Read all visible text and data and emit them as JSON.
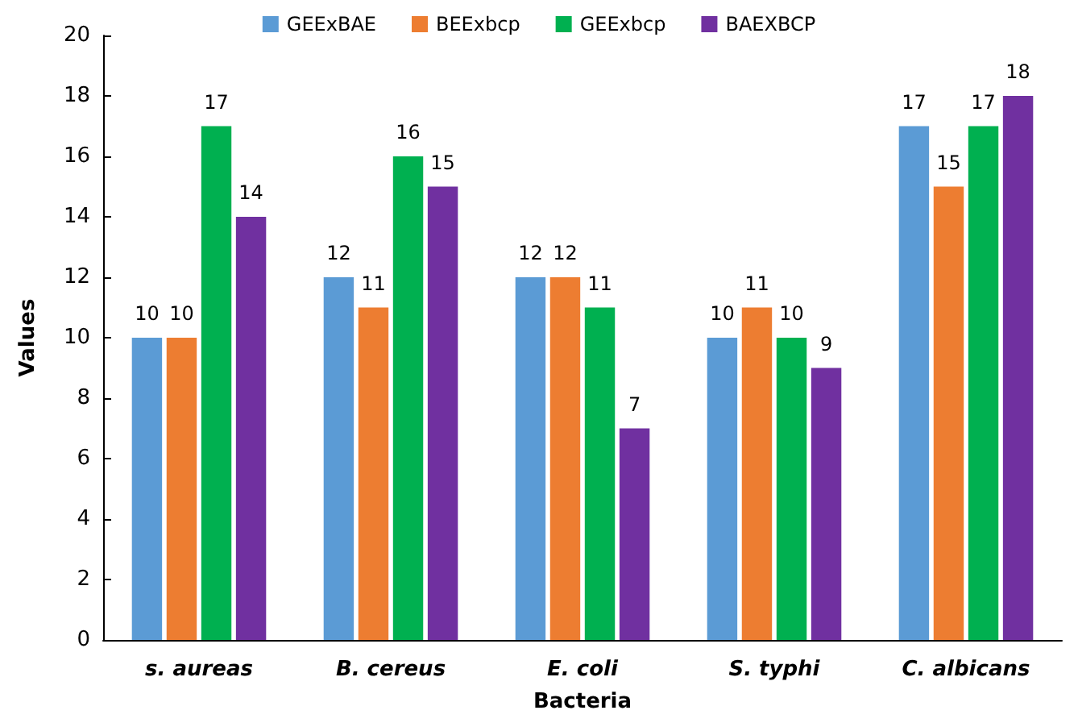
{
  "chart_data": {
    "type": "bar",
    "xlabel": "Bacteria",
    "ylabel": "Values",
    "categories": [
      "s. aureas",
      "B. cereus",
      "E. coli",
      "S. typhi",
      "C. albicans"
    ],
    "series": [
      {
        "name": "GEExBAE",
        "color": "#5b9bd5",
        "values": [
          10,
          12,
          12,
          10,
          17
        ]
      },
      {
        "name": "BEExbcp",
        "color": "#ed7d31",
        "values": [
          10,
          11,
          12,
          11,
          15
        ]
      },
      {
        "name": "GEExbcp",
        "color": "#00b050",
        "values": [
          17,
          16,
          11,
          10,
          17
        ]
      },
      {
        "name": "BAEXBCP",
        "color": "#7030a0",
        "values": [
          14,
          15,
          7,
          9,
          18
        ]
      }
    ],
    "ylim": [
      0,
      20
    ],
    "yticks": [
      0,
      2,
      4,
      6,
      8,
      10,
      12,
      14,
      16,
      18,
      20
    ],
    "grid": false,
    "legend": "top",
    "data_labels": true
  }
}
